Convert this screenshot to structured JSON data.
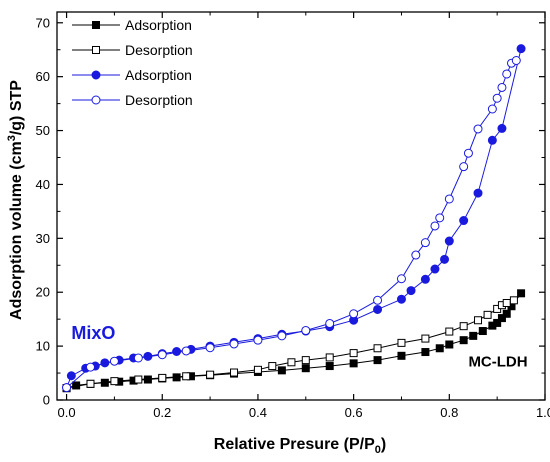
{
  "chart_data": {
    "type": "scatter",
    "title": "",
    "xlabel": "Relative Presure (P/P",
    "xlabel_sub": "0",
    "xlabel_end": ")",
    "ylabel": "Adsorption volume (cm",
    "ylabel_sup": "3",
    "ylabel_end": "/g) STP",
    "xlim": [
      -0.02,
      1.0
    ],
    "ylim": [
      0,
      72
    ],
    "xticks": [
      0.0,
      0.2,
      0.4,
      0.6,
      0.8,
      1.0
    ],
    "xtick_labels": [
      "0.0",
      "0.2",
      "0.4",
      "0.6",
      "0.8",
      "1.0"
    ],
    "yticks": [
      0,
      10,
      20,
      30,
      40,
      50,
      60,
      70
    ],
    "ytick_labels": [
      "0",
      "10",
      "20",
      "30",
      "40",
      "50",
      "60",
      "70"
    ],
    "grid": false,
    "legend_position": "top-left",
    "annotations": [
      {
        "text": "MixO",
        "color": "#1a1adf",
        "x": 0.01,
        "y": 11.3
      },
      {
        "text": "MC-LDH",
        "color": "#000000",
        "x": 0.84,
        "y": 6.2
      }
    ],
    "series": [
      {
        "name": "Adsorption",
        "color": "#000000",
        "marker": "square-filled",
        "x": [
          0.0,
          0.02,
          0.05,
          0.08,
          0.11,
          0.14,
          0.17,
          0.2,
          0.23,
          0.26,
          0.3,
          0.35,
          0.4,
          0.45,
          0.5,
          0.55,
          0.6,
          0.65,
          0.7,
          0.75,
          0.78,
          0.8,
          0.83,
          0.85,
          0.87,
          0.89,
          0.9,
          0.91,
          0.92,
          0.93,
          0.95
        ],
        "y": [
          2.2,
          2.7,
          3.0,
          3.2,
          3.4,
          3.6,
          3.8,
          4.0,
          4.2,
          4.4,
          4.6,
          4.9,
          5.2,
          5.5,
          5.9,
          6.3,
          6.8,
          7.4,
          8.2,
          8.9,
          9.6,
          10.3,
          11.1,
          11.9,
          12.8,
          13.8,
          14.3,
          15.2,
          16.0,
          17.4,
          19.8
        ]
      },
      {
        "name": "Desorption",
        "color": "#000000",
        "marker": "square-open",
        "x": [
          0.0,
          0.05,
          0.1,
          0.15,
          0.2,
          0.25,
          0.3,
          0.35,
          0.4,
          0.43,
          0.47,
          0.5,
          0.55,
          0.6,
          0.65,
          0.7,
          0.75,
          0.8,
          0.83,
          0.86,
          0.88,
          0.9,
          0.91,
          0.92,
          0.935
        ],
        "y": [
          2.2,
          3.0,
          3.5,
          3.8,
          4.1,
          4.4,
          4.7,
          5.1,
          5.6,
          6.3,
          7.0,
          7.4,
          7.9,
          8.7,
          9.6,
          10.6,
          11.4,
          12.7,
          13.7,
          14.8,
          15.8,
          16.9,
          17.6,
          18.0,
          18.5
        ]
      },
      {
        "name": "Adsorption",
        "color": "#1a1adf",
        "marker": "circle-filled",
        "x": [
          0.0,
          0.01,
          0.04,
          0.06,
          0.08,
          0.11,
          0.14,
          0.17,
          0.2,
          0.23,
          0.26,
          0.3,
          0.35,
          0.4,
          0.45,
          0.5,
          0.55,
          0.6,
          0.65,
          0.7,
          0.72,
          0.75,
          0.77,
          0.79,
          0.8,
          0.83,
          0.86,
          0.89,
          0.91,
          0.95
        ],
        "y": [
          2.3,
          4.5,
          5.9,
          6.3,
          6.9,
          7.4,
          7.8,
          8.1,
          8.6,
          9.0,
          9.4,
          10.0,
          10.7,
          11.4,
          12.2,
          12.8,
          13.6,
          14.8,
          16.8,
          18.7,
          20.3,
          22.4,
          24.3,
          26.1,
          29.5,
          33.3,
          38.4,
          48.2,
          50.4,
          65.2
        ]
      },
      {
        "name": "Desorption",
        "color": "#1a1adf",
        "marker": "circle-open",
        "x": [
          0.0,
          0.05,
          0.1,
          0.15,
          0.2,
          0.25,
          0.3,
          0.35,
          0.4,
          0.45,
          0.5,
          0.55,
          0.6,
          0.65,
          0.7,
          0.73,
          0.75,
          0.77,
          0.78,
          0.8,
          0.83,
          0.84,
          0.86,
          0.89,
          0.9,
          0.91,
          0.92,
          0.93,
          0.94
        ],
        "y": [
          2.3,
          6.1,
          7.2,
          7.8,
          8.4,
          9.1,
          9.7,
          10.4,
          11.1,
          11.9,
          12.9,
          14.2,
          16.0,
          18.5,
          22.5,
          26.9,
          29.2,
          32.3,
          33.8,
          37.3,
          43.3,
          45.8,
          50.3,
          54.0,
          56.0,
          58.0,
          60.5,
          62.5,
          63.0
        ]
      }
    ]
  }
}
